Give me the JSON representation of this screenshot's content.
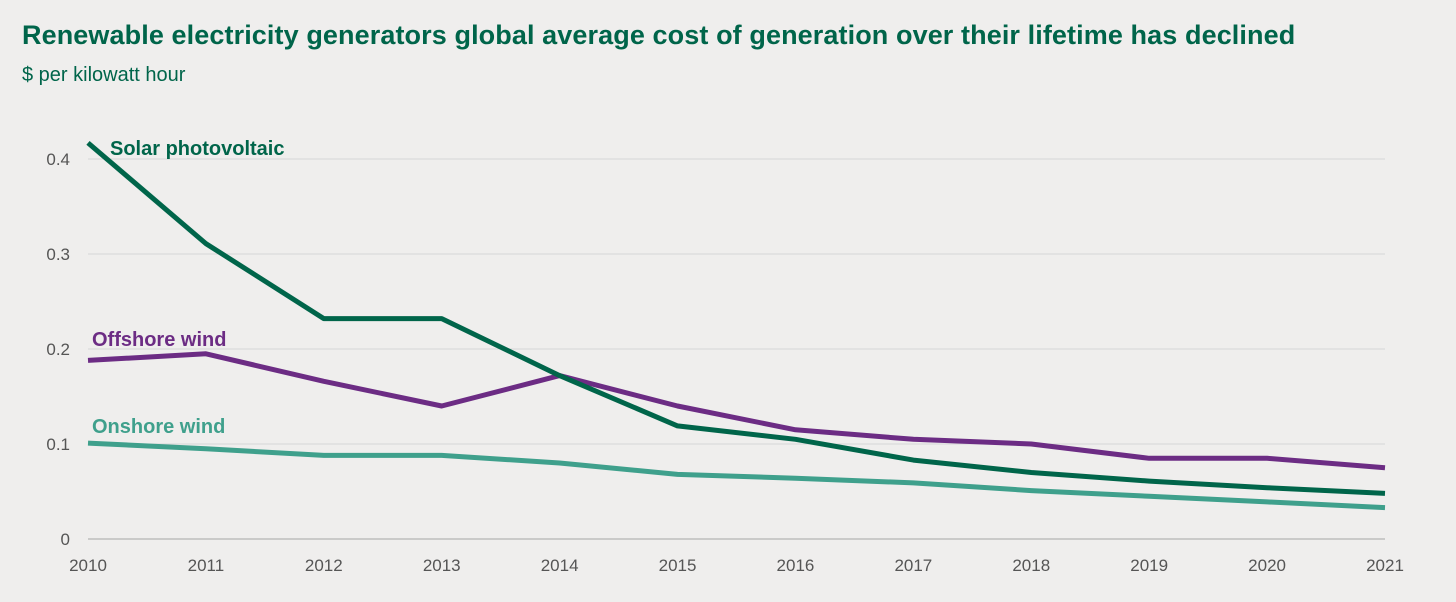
{
  "chart_data": {
    "type": "line",
    "title": "Renewable electricity generators global average cost of generation over their lifetime has declined",
    "subtitle": "$ per kilowatt hour",
    "xlabel": "",
    "ylabel": "$ per kilowatt hour",
    "grid": true,
    "ylim": [
      0,
      0.42
    ],
    "yticks": [
      0,
      0.1,
      0.2,
      0.3,
      0.4
    ],
    "ytick_labels": [
      "0",
      "0.1",
      "0.2",
      "0.3",
      "0.4"
    ],
    "categories": [
      "2010",
      "2011",
      "2012",
      "2013",
      "2014",
      "2015",
      "2016",
      "2017",
      "2018",
      "2019",
      "2020",
      "2021"
    ],
    "series": [
      {
        "name": "Solar photovoltaic",
        "color": "#00654a",
        "values": [
          0.417,
          0.311,
          0.232,
          0.232,
          0.172,
          0.119,
          0.105,
          0.083,
          0.07,
          0.061,
          0.054,
          0.048
        ]
      },
      {
        "name": "Offshore wind",
        "color": "#6c2c84",
        "values": [
          0.188,
          0.195,
          0.166,
          0.14,
          0.172,
          0.14,
          0.115,
          0.105,
          0.1,
          0.085,
          0.085,
          0.075
        ]
      },
      {
        "name": "Onshore wind",
        "color": "#3fa08c",
        "values": [
          0.101,
          0.095,
          0.088,
          0.088,
          0.08,
          0.068,
          0.064,
          0.059,
          0.051,
          0.045,
          0.039,
          0.033
        ]
      }
    ]
  }
}
